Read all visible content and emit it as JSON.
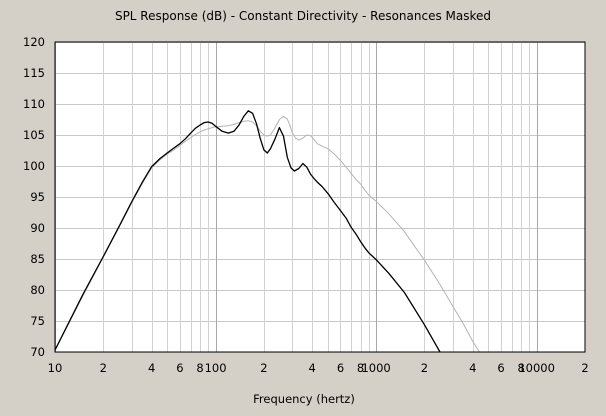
{
  "chart_data": {
    "type": "line",
    "title": "SPL Response (dB) - Constant Directivity - Resonances Masked",
    "xlabel": "Frequency (hertz)",
    "ylabel": "",
    "x_scale": "log",
    "xlim": [
      10,
      20000
    ],
    "ylim": [
      70,
      120
    ],
    "grid": true,
    "y_ticks": [
      {
        "value": 70,
        "label": "70"
      },
      {
        "value": 75,
        "label": "75"
      },
      {
        "value": 80,
        "label": "80"
      },
      {
        "value": 85,
        "label": "85"
      },
      {
        "value": 90,
        "label": "90"
      },
      {
        "value": 95,
        "label": "95"
      },
      {
        "value": 100,
        "label": "100"
      },
      {
        "value": 105,
        "label": "105"
      },
      {
        "value": 110,
        "label": "110"
      },
      {
        "value": 115,
        "label": "115"
      },
      {
        "value": 120,
        "label": "120"
      }
    ],
    "x_ticks": [
      {
        "value": 10,
        "label": "10"
      },
      {
        "value": 20,
        "label": "2"
      },
      {
        "value": 40,
        "label": "4"
      },
      {
        "value": 60,
        "label": "6"
      },
      {
        "value": 80,
        "label": "8"
      },
      {
        "value": 100,
        "label": "100"
      },
      {
        "value": 200,
        "label": "2"
      },
      {
        "value": 400,
        "label": "4"
      },
      {
        "value": 600,
        "label": "6"
      },
      {
        "value": 800,
        "label": "8"
      },
      {
        "value": 1000,
        "label": "1000"
      },
      {
        "value": 2000,
        "label": "2"
      },
      {
        "value": 4000,
        "label": "4"
      },
      {
        "value": 6000,
        "label": "6"
      },
      {
        "value": 8000,
        "label": "8"
      },
      {
        "value": 10000,
        "label": "10000"
      },
      {
        "value": 20000,
        "label": "2"
      }
    ],
    "series": [
      {
        "color": "#b4b4b4",
        "x": [
          10,
          15,
          20,
          25,
          30,
          35,
          40,
          45,
          50,
          55,
          60,
          65,
          70,
          75,
          80,
          85,
          90,
          95,
          100,
          110,
          120,
          130,
          140,
          150,
          160,
          170,
          180,
          190,
          200,
          210,
          220,
          235,
          250,
          265,
          280,
          290,
          300,
          315,
          330,
          350,
          370,
          390,
          410,
          430,
          460,
          500,
          550,
          600,
          650,
          700,
          750,
          800,
          850,
          900,
          1000,
          1200,
          1500,
          2000,
          2500,
          3000,
          3500,
          4000,
          4400
        ],
        "y": [
          70.3,
          79.2,
          85.3,
          90.1,
          94.0,
          97.2,
          99.7,
          101.0,
          101.9,
          102.6,
          103.3,
          104.0,
          104.6,
          105.1,
          105.5,
          105.8,
          106.0,
          106.2,
          106.3,
          106.4,
          106.5,
          106.7,
          107.0,
          107.2,
          107.3,
          107.1,
          106.5,
          105.6,
          105.0,
          104.8,
          105.0,
          106.2,
          107.5,
          108.0,
          107.6,
          106.6,
          105.4,
          104.5,
          104.2,
          104.5,
          105.0,
          104.9,
          104.3,
          103.6,
          103.2,
          102.8,
          101.9,
          100.9,
          99.8,
          98.8,
          97.8,
          97.1,
          96.1,
          95.3,
          94.3,
          92.3,
          89.4,
          84.8,
          80.9,
          77.4,
          74.5,
          71.7,
          70.0
        ]
      },
      {
        "color": "#000000",
        "x": [
          10,
          15,
          20,
          25,
          30,
          35,
          40,
          45,
          50,
          55,
          60,
          65,
          70,
          75,
          80,
          85,
          90,
          95,
          100,
          110,
          120,
          130,
          140,
          150,
          160,
          170,
          180,
          190,
          200,
          210,
          220,
          235,
          250,
          265,
          280,
          295,
          310,
          330,
          350,
          370,
          390,
          410,
          430,
          460,
          500,
          550,
          600,
          650,
          700,
          750,
          800,
          850,
          900,
          1000,
          1200,
          1500,
          2000,
          2500
        ],
        "y": [
          70.3,
          79.4,
          85.4,
          90.2,
          94.2,
          97.4,
          99.9,
          101.2,
          102.1,
          102.9,
          103.6,
          104.4,
          105.3,
          106.1,
          106.6,
          107.0,
          107.1,
          106.9,
          106.4,
          105.6,
          105.3,
          105.6,
          106.6,
          108.0,
          108.9,
          108.5,
          106.8,
          104.4,
          102.6,
          102.1,
          102.8,
          104.4,
          106.2,
          104.8,
          101.4,
          99.7,
          99.2,
          99.6,
          100.4,
          99.8,
          98.7,
          98.0,
          97.4,
          96.7,
          95.6,
          94.1,
          92.8,
          91.6,
          90.1,
          89.0,
          87.8,
          86.8,
          86.0,
          84.9,
          82.7,
          79.6,
          74.4,
          70.0
        ]
      }
    ]
  }
}
